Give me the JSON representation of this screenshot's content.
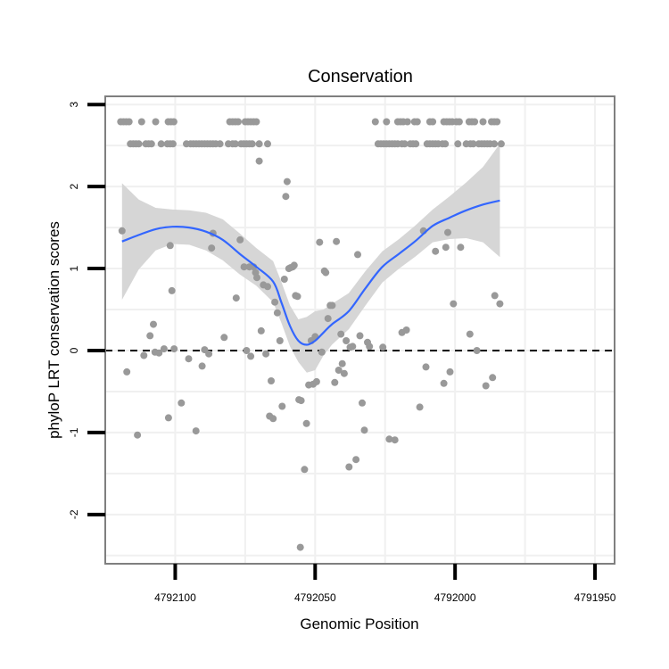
{
  "chart_data": {
    "type": "scatter",
    "title": "Conservation",
    "xlabel": "Genomic Position",
    "ylabel": "phyloP LRT conservation scores",
    "x_reversed": true,
    "xlim": [
      4792125,
      4791943
    ],
    "ylim": [
      -2.6,
      3.1
    ],
    "x_ticks": [
      {
        "value": 4792100,
        "label": "4792100"
      },
      {
        "value": 4792050,
        "label": "4792050"
      },
      {
        "value": 4792000,
        "label": "4792000"
      },
      {
        "value": 4791950,
        "label": "4791950"
      }
    ],
    "y_ticks": [
      {
        "value": -2,
        "label": "-2"
      },
      {
        "value": -1,
        "label": "-1"
      },
      {
        "value": 0,
        "label": "0"
      },
      {
        "value": 1,
        "label": "1"
      },
      {
        "value": 2,
        "label": "2"
      },
      {
        "value": 3,
        "label": "3"
      }
    ],
    "grid": true,
    "reference_line": {
      "y": 0,
      "style": "dashed"
    },
    "colors": {
      "points": "#999999",
      "smooth": "#3366FF",
      "ribbon": "#d6d6d6",
      "grid": "#f0f0f0",
      "border": "#7f7f7f"
    },
    "points": [
      [
        4792119.0,
        1.46
      ],
      [
        4792117.3,
        -0.26
      ],
      [
        4792113.5,
        -1.03
      ],
      [
        4792111.2,
        -0.06
      ],
      [
        4792109.0,
        0.18
      ],
      [
        4792107.8,
        0.32
      ],
      [
        4792107.2,
        -0.02
      ],
      [
        4792105.8,
        -0.03
      ],
      [
        4792104.0,
        0.02
      ],
      [
        4792102.4,
        -0.82
      ],
      [
        4792101.8,
        1.28
      ],
      [
        4792101.2,
        0.73
      ],
      [
        4792100.4,
        0.02
      ],
      [
        4792097.8,
        -0.64
      ],
      [
        4792095.2,
        -0.1
      ],
      [
        4792092.6,
        -0.98
      ],
      [
        4792090.4,
        -0.19
      ],
      [
        4792089.5,
        0.01
      ],
      [
        4792088.0,
        -0.04
      ],
      [
        4792087.0,
        1.25
      ],
      [
        4792086.5,
        1.43
      ],
      [
        4792082.5,
        0.16
      ],
      [
        4792078.2,
        0.64
      ],
      [
        4792076.8,
        1.35
      ],
      [
        4792075.4,
        1.02
      ],
      [
        4792074.5,
        0.0
      ],
      [
        4792073.5,
        1.02
      ],
      [
        4792073.0,
        -0.07
      ],
      [
        4792072.0,
        1.02
      ],
      [
        4792071.3,
        0.95
      ],
      [
        4792070.8,
        0.89
      ],
      [
        4792070.0,
        2.31
      ],
      [
        4792069.3,
        0.24
      ],
      [
        4792068.5,
        0.8
      ],
      [
        4792067.6,
        -0.04
      ],
      [
        4792067.0,
        0.78
      ],
      [
        4792066.3,
        -0.8
      ],
      [
        4792065.7,
        -0.37
      ],
      [
        4792065.0,
        -0.83
      ],
      [
        4792064.4,
        0.59
      ],
      [
        4792063.5,
        0.46
      ],
      [
        4792062.6,
        0.12
      ],
      [
        4792061.8,
        -0.68
      ],
      [
        4792061.0,
        0.87
      ],
      [
        4792060.5,
        1.88
      ],
      [
        4792060.0,
        2.06
      ],
      [
        4792059.4,
        1.0
      ],
      [
        4792058.8,
        1.01
      ],
      [
        4792058.0,
        1.02
      ],
      [
        4792057.5,
        1.04
      ],
      [
        4792057.0,
        0.67
      ],
      [
        4792056.3,
        0.66
      ],
      [
        4792055.8,
        -0.6
      ],
      [
        4792055.3,
        -2.4
      ],
      [
        4792055.0,
        -0.61
      ],
      [
        4792053.8,
        -1.45
      ],
      [
        4792053.1,
        -0.89
      ],
      [
        4792052.3,
        -0.42
      ],
      [
        4792051.4,
        0.12
      ],
      [
        4792050.7,
        -0.41
      ],
      [
        4792050.0,
        0.17
      ],
      [
        4792049.5,
        -0.38
      ],
      [
        4792048.4,
        1.32
      ],
      [
        4792047.6,
        -0.02
      ],
      [
        4792046.7,
        0.97
      ],
      [
        4792046.2,
        0.95
      ],
      [
        4792045.4,
        0.39
      ],
      [
        4792044.6,
        0.55
      ],
      [
        4792043.9,
        0.55
      ],
      [
        4792043.0,
        -0.39
      ],
      [
        4792042.4,
        1.33
      ],
      [
        4792041.6,
        -0.24
      ],
      [
        4792040.8,
        0.2
      ],
      [
        4792040.3,
        -0.16
      ],
      [
        4792039.6,
        -0.28
      ],
      [
        4792038.9,
        0.12
      ],
      [
        4792037.9,
        -1.42
      ],
      [
        4792037.5,
        0.04
      ],
      [
        4792036.6,
        0.05
      ],
      [
        4792035.4,
        -1.33
      ],
      [
        4792034.8,
        1.17
      ],
      [
        4792034.0,
        0.18
      ],
      [
        4792033.2,
        -0.64
      ],
      [
        4792032.4,
        -0.97
      ],
      [
        4792031.3,
        0.1
      ],
      [
        4792030.6,
        0.05
      ],
      [
        4792025.8,
        0.04
      ],
      [
        4792023.5,
        -1.08
      ],
      [
        4792021.5,
        -1.09
      ],
      [
        4792019.0,
        0.22
      ],
      [
        4792017.4,
        0.25
      ],
      [
        4792012.6,
        -0.69
      ],
      [
        4792011.3,
        1.46
      ],
      [
        4792010.4,
        -0.2
      ],
      [
        4792007.0,
        1.21
      ],
      [
        4792004.0,
        -0.4
      ],
      [
        4792003.3,
        1.26
      ],
      [
        4792002.6,
        1.44
      ],
      [
        4792001.8,
        -0.26
      ],
      [
        4792000.6,
        0.57
      ],
      [
        4791998.0,
        1.26
      ],
      [
        4791994.7,
        0.2
      ],
      [
        4791992.2,
        0.0
      ],
      [
        4791989.0,
        -0.43
      ],
      [
        4791986.6,
        -0.33
      ],
      [
        4791985.8,
        0.67
      ],
      [
        4791984.0,
        0.57
      ],
      [
        4792119.5,
        2.79
      ],
      [
        4792118.5,
        2.79
      ],
      [
        4792117.5,
        2.79
      ],
      [
        4792116.5,
        2.79
      ],
      [
        4792112.0,
        2.79
      ],
      [
        4792107.0,
        2.79
      ],
      [
        4792102.5,
        2.79
      ],
      [
        4792101.5,
        2.79
      ],
      [
        4792100.5,
        2.79
      ],
      [
        4792080.5,
        2.79
      ],
      [
        4792079.5,
        2.79
      ],
      [
        4792078.5,
        2.79
      ],
      [
        4792077.5,
        2.79
      ],
      [
        4792075.0,
        2.79
      ],
      [
        4792074.0,
        2.79
      ],
      [
        4792073.0,
        2.79
      ],
      [
        4792072.0,
        2.79
      ],
      [
        4792071.0,
        2.79
      ],
      [
        4792028.5,
        2.79
      ],
      [
        4792024.5,
        2.79
      ],
      [
        4792020.5,
        2.79
      ],
      [
        4792019.5,
        2.79
      ],
      [
        4792018.5,
        2.79
      ],
      [
        4792017.0,
        2.79
      ],
      [
        4792014.5,
        2.79
      ],
      [
        4792013.5,
        2.79
      ],
      [
        4792009.0,
        2.79
      ],
      [
        4792008.0,
        2.79
      ],
      [
        4792004.0,
        2.79
      ],
      [
        4792003.0,
        2.79
      ],
      [
        4792002.0,
        2.79
      ],
      [
        4792001.0,
        2.79
      ],
      [
        4791999.5,
        2.79
      ],
      [
        4791998.5,
        2.79
      ],
      [
        4791995.0,
        2.79
      ],
      [
        4791994.0,
        2.79
      ],
      [
        4791993.0,
        2.79
      ],
      [
        4791990.0,
        2.79
      ],
      [
        4791987.0,
        2.79
      ],
      [
        4791986.0,
        2.79
      ],
      [
        4791985.0,
        2.79
      ],
      [
        4792116.0,
        2.52
      ],
      [
        4792115.0,
        2.52
      ],
      [
        4792114.0,
        2.52
      ],
      [
        4792113.0,
        2.52
      ],
      [
        4792110.5,
        2.52
      ],
      [
        4792109.5,
        2.52
      ],
      [
        4792108.5,
        2.52
      ],
      [
        4792105.0,
        2.52
      ],
      [
        4792102.8,
        2.52
      ],
      [
        4792101.8,
        2.52
      ],
      [
        4792100.8,
        2.52
      ],
      [
        4792096.0,
        2.52
      ],
      [
        4792094.5,
        2.52
      ],
      [
        4792093.5,
        2.52
      ],
      [
        4792092.5,
        2.52
      ],
      [
        4792091.5,
        2.52
      ],
      [
        4792090.5,
        2.52
      ],
      [
        4792089.5,
        2.52
      ],
      [
        4792088.5,
        2.52
      ],
      [
        4792087.5,
        2.52
      ],
      [
        4792086.5,
        2.52
      ],
      [
        4792085.5,
        2.52
      ],
      [
        4792084.0,
        2.52
      ],
      [
        4792081.0,
        2.52
      ],
      [
        4792079.5,
        2.52
      ],
      [
        4792078.5,
        2.52
      ],
      [
        4792076.5,
        2.52
      ],
      [
        4792075.5,
        2.52
      ],
      [
        4792074.5,
        2.52
      ],
      [
        4792073.5,
        2.52
      ],
      [
        4792072.5,
        2.52
      ],
      [
        4792070.0,
        2.52
      ],
      [
        4792067.0,
        2.52
      ],
      [
        4792027.5,
        2.52
      ],
      [
        4792026.5,
        2.52
      ],
      [
        4792025.5,
        2.52
      ],
      [
        4792024.5,
        2.52
      ],
      [
        4792023.5,
        2.52
      ],
      [
        4792022.5,
        2.52
      ],
      [
        4792021.5,
        2.52
      ],
      [
        4792020.5,
        2.52
      ],
      [
        4792019.0,
        2.52
      ],
      [
        4792018.0,
        2.52
      ],
      [
        4792016.0,
        2.52
      ],
      [
        4792015.0,
        2.52
      ],
      [
        4792014.0,
        2.52
      ],
      [
        4792010.0,
        2.52
      ],
      [
        4792009.0,
        2.52
      ],
      [
        4792008.0,
        2.52
      ],
      [
        4792007.0,
        2.52
      ],
      [
        4792006.0,
        2.52
      ],
      [
        4792004.5,
        2.52
      ],
      [
        4792003.5,
        2.52
      ],
      [
        4791999.0,
        2.52
      ],
      [
        4791996.0,
        2.52
      ],
      [
        4791994.5,
        2.52
      ],
      [
        4791993.5,
        2.52
      ],
      [
        4791991.5,
        2.52
      ],
      [
        4791990.5,
        2.52
      ],
      [
        4791989.5,
        2.52
      ],
      [
        4791988.5,
        2.52
      ],
      [
        4791987.5,
        2.52
      ],
      [
        4791986.0,
        2.52
      ],
      [
        4791983.5,
        2.52
      ]
    ],
    "smooth_line": {
      "x": [
        4792119.0,
        4792113.0,
        4792107.0,
        4792101.0,
        4792095.0,
        4792089.0,
        4792083.0,
        4792077.0,
        4792071.0,
        4792065.0,
        4792062.0,
        4792059.0,
        4792056.0,
        4792053.0,
        4792050.0,
        4792047.0,
        4792044.0,
        4792038.0,
        4792032.0,
        4792026.0,
        4792020.0,
        4792014.0,
        4792008.0,
        4792002.0,
        4791996.0,
        4791990.0,
        4791984.0
      ],
      "y": [
        1.33,
        1.41,
        1.48,
        1.51,
        1.5,
        1.45,
        1.35,
        1.18,
        1.02,
        0.84,
        0.58,
        0.3,
        0.12,
        0.07,
        0.12,
        0.22,
        0.32,
        0.48,
        0.76,
        1.02,
        1.18,
        1.34,
        1.52,
        1.62,
        1.71,
        1.78,
        1.83
      ],
      "lo": [
        0.62,
        0.99,
        1.22,
        1.3,
        1.29,
        1.22,
        1.1,
        0.93,
        0.79,
        0.59,
        0.33,
        0.05,
        -0.14,
        -0.27,
        -0.24,
        -0.06,
        0.07,
        0.26,
        0.55,
        0.83,
        1.0,
        1.15,
        1.32,
        1.36,
        1.37,
        1.32,
        1.14
      ],
      "hi": [
        2.04,
        1.84,
        1.74,
        1.72,
        1.71,
        1.68,
        1.6,
        1.43,
        1.25,
        1.09,
        0.83,
        0.55,
        0.38,
        0.41,
        0.48,
        0.5,
        0.57,
        0.7,
        0.97,
        1.21,
        1.36,
        1.53,
        1.72,
        1.88,
        2.05,
        2.24,
        2.52
      ]
    }
  }
}
